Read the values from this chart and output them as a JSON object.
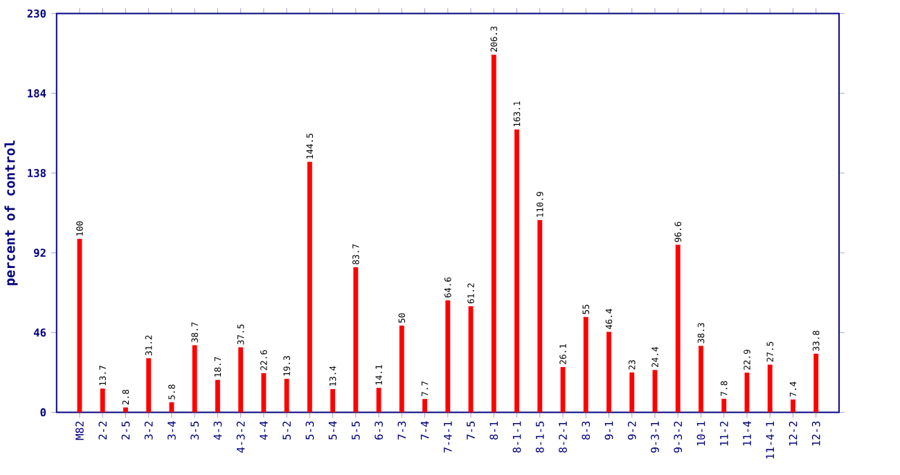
{
  "chart_data": {
    "type": "bar",
    "ylabel": "percent of control",
    "categories": [
      "M82",
      "2-2",
      "2-5",
      "3-2",
      "3-4",
      "3-5",
      "4-3",
      "4-3-2",
      "4-4",
      "5-2",
      "5-3",
      "5-4",
      "5-5",
      "6-3",
      "7-3",
      "7-4",
      "7-4-1",
      "7-5",
      "8-1",
      "8-1-1",
      "8-1-5",
      "8-2-1",
      "8-3",
      "9-1",
      "9-2",
      "9-3-1",
      "9-3-2",
      "10-1",
      "11-2",
      "11-4",
      "11-4-1",
      "12-2",
      "12-3"
    ],
    "values": [
      100,
      13.7,
      2.8,
      31.2,
      5.8,
      38.7,
      18.7,
      37.5,
      22.6,
      19.3,
      144.5,
      13.4,
      83.7,
      14.1,
      50,
      7.7,
      64.6,
      61.2,
      206.3,
      163.1,
      110.9,
      26.1,
      55,
      46.4,
      23,
      24.4,
      96.6,
      38.3,
      7.8,
      22.9,
      27.5,
      7.4,
      33.8
    ],
    "color": "#ff0000",
    "ylim": [
      0,
      230
    ],
    "yticks": [
      0,
      46,
      92,
      138,
      184,
      230
    ],
    "data_labels": true
  }
}
